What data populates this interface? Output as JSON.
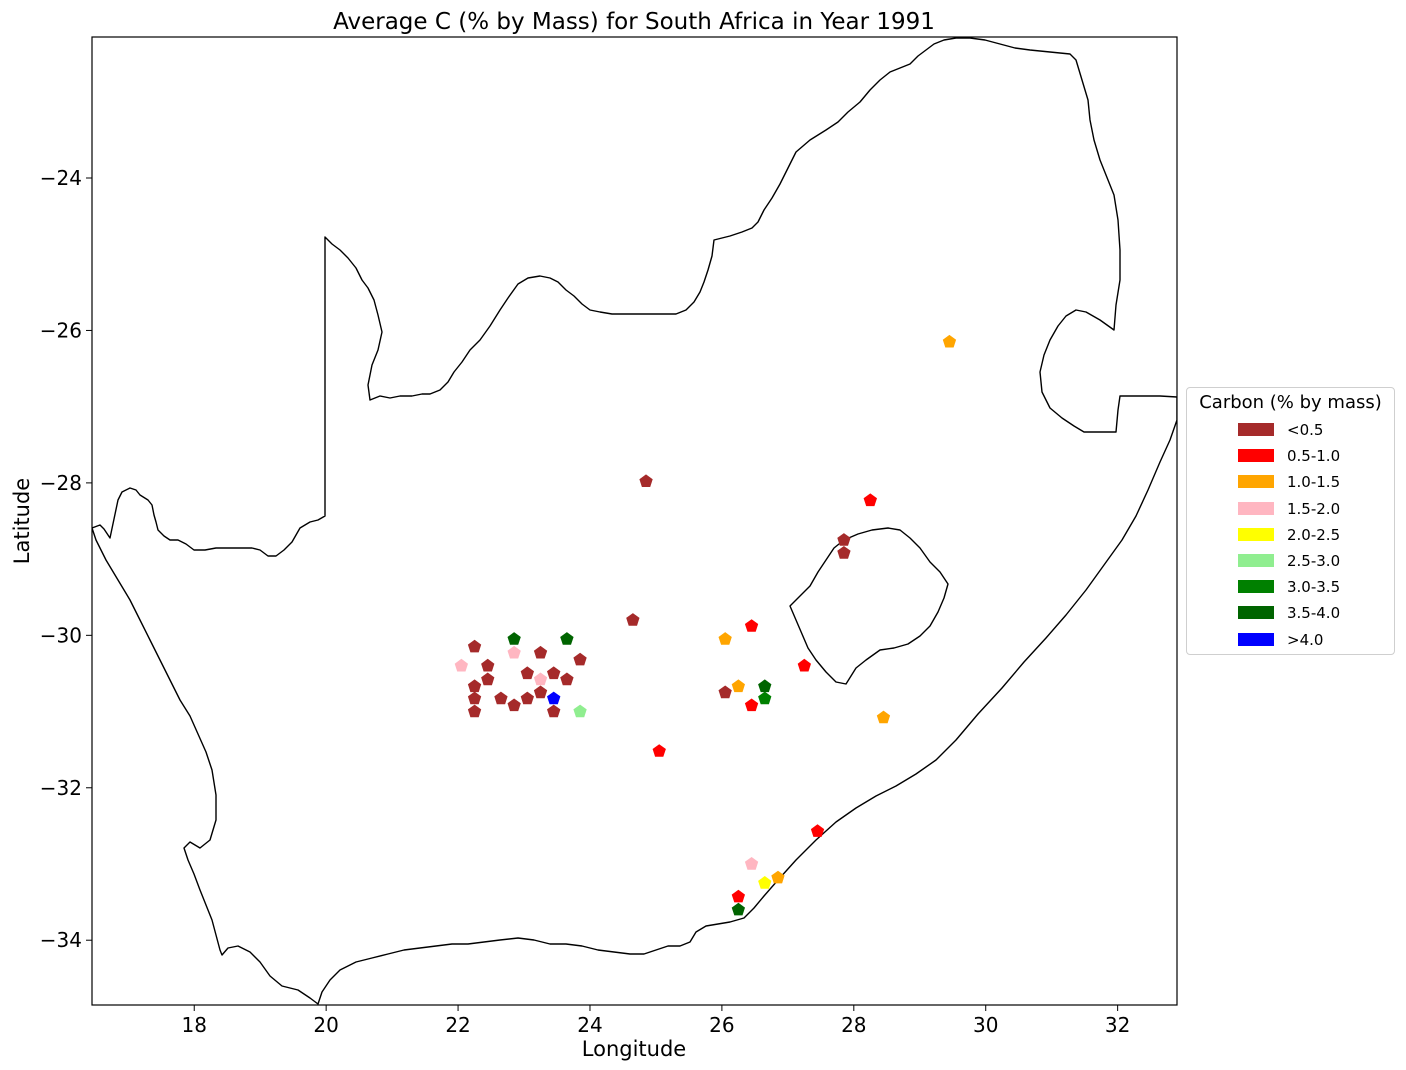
{
  "title": "Average C (% by Mass) for South Africa in Year 1991",
  "xlabel": "Longitude",
  "ylabel": "Latitude",
  "legend": {
    "title": "Carbon (% by mass)",
    "items": [
      {
        "label": "<0.5",
        "color": "#a52a2a"
      },
      {
        "label": "0.5-1.0",
        "color": "#ff0000"
      },
      {
        "label": "1.0-1.5",
        "color": "#ffa500"
      },
      {
        "label": "1.5-2.0",
        "color": "#ffb6c1"
      },
      {
        "label": "2.0-2.5",
        "color": "#ffff00"
      },
      {
        "label": "2.5-3.0",
        "color": "#90ee90"
      },
      {
        "label": "3.0-3.5",
        "color": "#008000"
      },
      {
        "label": "3.5-4.0",
        "color": "#006400"
      },
      {
        "label": ">4.0",
        "color": "#0000ff"
      }
    ]
  },
  "chart_data": {
    "type": "scatter",
    "xlim": [
      16.45,
      32.9
    ],
    "ylim": [
      -34.85,
      -22.15
    ],
    "xticks": [
      18,
      20,
      22,
      24,
      26,
      28,
      30,
      32
    ],
    "yticks": [
      -24,
      -26,
      -28,
      -30,
      -32,
      -34
    ],
    "grid": false,
    "legend_position": "right",
    "points": [
      {
        "lon": 29.45,
        "lat": -26.15,
        "cls": "1.0-1.5"
      },
      {
        "lon": 24.85,
        "lat": -27.98,
        "cls": "<0.5"
      },
      {
        "lon": 28.25,
        "lat": -28.23,
        "cls": "0.5-1.0"
      },
      {
        "lon": 27.85,
        "lat": -28.75,
        "cls": "<0.5"
      },
      {
        "lon": 27.85,
        "lat": -28.92,
        "cls": "<0.5"
      },
      {
        "lon": 24.65,
        "lat": -29.8,
        "cls": "<0.5"
      },
      {
        "lon": 26.45,
        "lat": -29.88,
        "cls": "0.5-1.0"
      },
      {
        "lon": 26.05,
        "lat": -30.05,
        "cls": "1.0-1.5"
      },
      {
        "lon": 22.85,
        "lat": -30.05,
        "cls": "3.5-4.0"
      },
      {
        "lon": 23.65,
        "lat": -30.05,
        "cls": "3.5-4.0"
      },
      {
        "lon": 22.25,
        "lat": -30.15,
        "cls": "<0.5"
      },
      {
        "lon": 22.85,
        "lat": -30.23,
        "cls": "1.5-2.0"
      },
      {
        "lon": 23.25,
        "lat": -30.23,
        "cls": "<0.5"
      },
      {
        "lon": 23.85,
        "lat": -30.32,
        "cls": "<0.5"
      },
      {
        "lon": 22.05,
        "lat": -30.4,
        "cls": "1.5-2.0"
      },
      {
        "lon": 22.45,
        "lat": -30.4,
        "cls": "<0.5"
      },
      {
        "lon": 27.25,
        "lat": -30.4,
        "cls": "0.5-1.0"
      },
      {
        "lon": 23.05,
        "lat": -30.5,
        "cls": "<0.5"
      },
      {
        "lon": 23.45,
        "lat": -30.5,
        "cls": "<0.5"
      },
      {
        "lon": 22.45,
        "lat": -30.58,
        "cls": "<0.5"
      },
      {
        "lon": 23.25,
        "lat": -30.58,
        "cls": "1.5-2.0"
      },
      {
        "lon": 23.65,
        "lat": -30.58,
        "cls": "<0.5"
      },
      {
        "lon": 22.25,
        "lat": -30.67,
        "cls": "<0.5"
      },
      {
        "lon": 26.25,
        "lat": -30.67,
        "cls": "1.0-1.5"
      },
      {
        "lon": 26.65,
        "lat": -30.67,
        "cls": "3.5-4.0"
      },
      {
        "lon": 23.25,
        "lat": -30.75,
        "cls": "<0.5"
      },
      {
        "lon": 26.05,
        "lat": -30.75,
        "cls": "<0.5"
      },
      {
        "lon": 22.25,
        "lat": -30.83,
        "cls": "<0.5"
      },
      {
        "lon": 22.65,
        "lat": -30.83,
        "cls": "<0.5"
      },
      {
        "lon": 23.05,
        "lat": -30.83,
        "cls": "<0.5"
      },
      {
        "lon": 23.45,
        "lat": -30.83,
        "cls": ">4.0"
      },
      {
        "lon": 26.65,
        "lat": -30.83,
        "cls": "3.0-3.5"
      },
      {
        "lon": 22.85,
        "lat": -30.92,
        "cls": "<0.5"
      },
      {
        "lon": 26.45,
        "lat": -30.92,
        "cls": "0.5-1.0"
      },
      {
        "lon": 22.25,
        "lat": -31.0,
        "cls": "<0.5"
      },
      {
        "lon": 23.45,
        "lat": -31.0,
        "cls": "<0.5"
      },
      {
        "lon": 23.85,
        "lat": -31.0,
        "cls": "2.5-3.0"
      },
      {
        "lon": 28.45,
        "lat": -31.08,
        "cls": "1.0-1.5"
      },
      {
        "lon": 25.05,
        "lat": -31.52,
        "cls": "0.5-1.0"
      },
      {
        "lon": 27.45,
        "lat": -32.57,
        "cls": "0.5-1.0"
      },
      {
        "lon": 26.45,
        "lat": -33.0,
        "cls": "1.5-2.0"
      },
      {
        "lon": 26.85,
        "lat": -33.18,
        "cls": "1.0-1.5"
      },
      {
        "lon": 26.65,
        "lat": -33.25,
        "cls": "2.0-2.5"
      },
      {
        "lon": 26.25,
        "lat": -33.43,
        "cls": "0.5-1.0"
      },
      {
        "lon": 26.25,
        "lat": -33.6,
        "cls": "3.5-4.0"
      }
    ]
  }
}
